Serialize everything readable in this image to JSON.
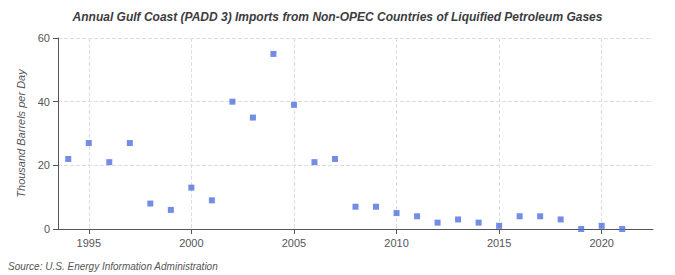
{
  "chart_data": {
    "type": "scatter",
    "title": "Annual Gulf Coast (PADD 3) Imports from Non-OPEC Countries of Liquified Petroleum Gases",
    "ylabel": "Thousand Barrels per Day",
    "source": "Source: U.S. Energy Information Administration",
    "x": [
      1994,
      1995,
      1996,
      1997,
      1998,
      1999,
      2000,
      2001,
      2002,
      2003,
      2004,
      2005,
      2006,
      2007,
      2008,
      2009,
      2010,
      2011,
      2012,
      2013,
      2014,
      2015,
      2016,
      2017,
      2018,
      2019,
      2020,
      2021
    ],
    "values": [
      22,
      27,
      21,
      27,
      8,
      6,
      13,
      9,
      40,
      35,
      55,
      39,
      21,
      22,
      7,
      7,
      5,
      4,
      2,
      3,
      2,
      1,
      4,
      4,
      3,
      0,
      1,
      0
    ],
    "xlim": [
      1993.5,
      2022.5
    ],
    "xticks": [
      1995,
      2000,
      2005,
      2010,
      2015,
      2020
    ],
    "ylim": [
      0,
      60
    ],
    "yticks": [
      0,
      20,
      40,
      60
    ],
    "grid": true,
    "marker": "square"
  }
}
